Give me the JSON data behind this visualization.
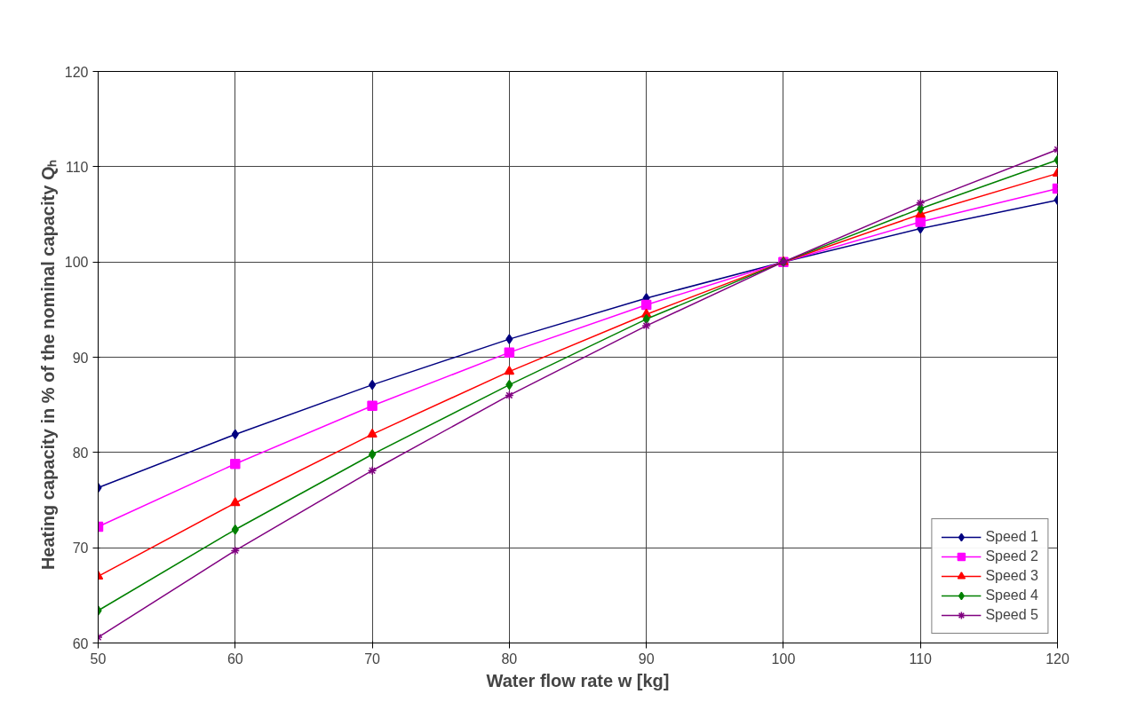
{
  "chart_data": {
    "type": "line",
    "xlabel": "Water flow rate w [kg]",
    "ylabel": "Heating capacity in % of the nominal capacity    Qₕ",
    "x": [
      50,
      60,
      70,
      80,
      90,
      100,
      110,
      120
    ],
    "xlim": [
      50,
      120
    ],
    "xticks": [
      50,
      60,
      70,
      80,
      90,
      100,
      110,
      120
    ],
    "ylim": [
      60,
      120
    ],
    "yticks": [
      60,
      70,
      80,
      90,
      100,
      110,
      120
    ],
    "grid": true,
    "legend": "bottom right",
    "line_style": "solid",
    "series": [
      {
        "name": "Speed 1",
        "color": "#000080",
        "marker": "diamond",
        "values": [
          76.3,
          81.9,
          87.1,
          91.9,
          96.2,
          100,
          103.5,
          106.5
        ]
      },
      {
        "name": "Speed 2",
        "color": "#ff00ff",
        "marker": "square",
        "values": [
          72.2,
          78.8,
          84.9,
          90.5,
          95.5,
          100,
          104.2,
          107.7
        ]
      },
      {
        "name": "Speed 3",
        "color": "#ff0000",
        "marker": "triangle",
        "values": [
          67,
          74.7,
          81.9,
          88.5,
          94.5,
          100,
          105,
          109.3
        ]
      },
      {
        "name": "Speed 4",
        "color": "#008000",
        "marker": "diamond",
        "values": [
          63.4,
          71.9,
          79.8,
          87.1,
          94,
          100,
          105.6,
          110.7
        ]
      },
      {
        "name": "Speed 5",
        "color": "#800080",
        "marker": "cross",
        "values": [
          60.6,
          69.7,
          78.1,
          86,
          93.3,
          100,
          106.2,
          111.8
        ]
      }
    ]
  }
}
